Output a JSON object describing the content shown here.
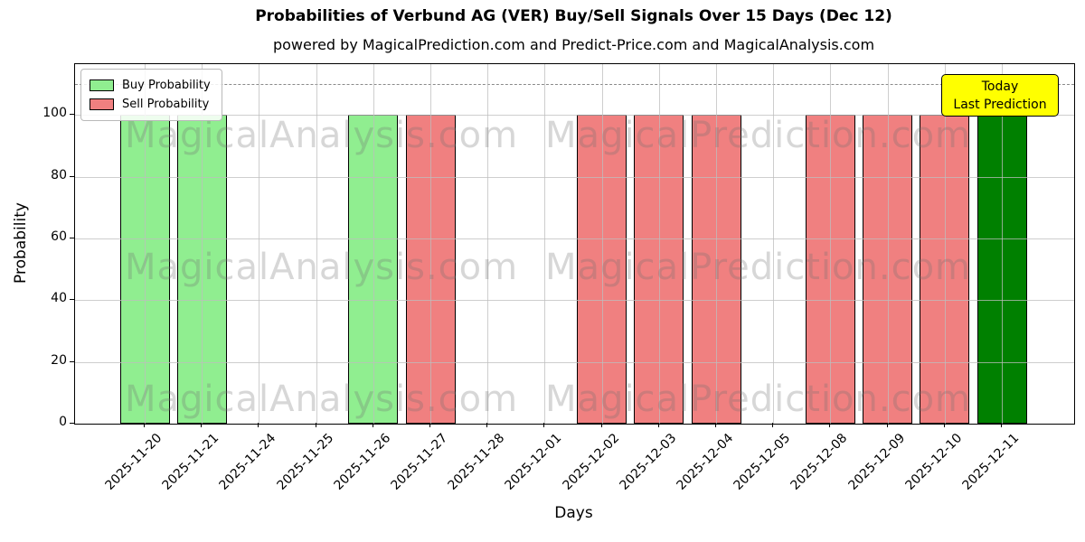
{
  "chart_data": {
    "type": "bar",
    "title": "Probabilities of Verbund AG (VER) Buy/Sell Signals Over 15 Days (Dec 12)",
    "subtitle": "powered by MagicalPrediction.com and Predict-Price.com and MagicalAnalysis.com",
    "xlabel": "Days",
    "ylabel": "Probability",
    "yticks": [
      0,
      20,
      40,
      60,
      80,
      100
    ],
    "ylim": [
      0,
      116
    ],
    "grid": true,
    "legend_position": "upper left",
    "threshold_line": {
      "y": 110,
      "style": "dashed"
    },
    "categories": [
      "2025-11-20",
      "2025-11-21",
      "2025-11-24",
      "2025-11-25",
      "2025-11-26",
      "2025-11-27",
      "2025-11-28",
      "2025-12-01",
      "2025-12-02",
      "2025-12-03",
      "2025-12-04",
      "2025-12-05",
      "2025-12-08",
      "2025-12-09",
      "2025-12-10",
      "2025-12-11"
    ],
    "series": [
      {
        "name": "Buy Probability",
        "color": "#90ee90",
        "values": [
          100,
          100,
          0,
          0,
          100,
          0,
          0,
          0,
          0,
          0,
          0,
          0,
          0,
          0,
          0,
          100
        ]
      },
      {
        "name": "Sell Probability",
        "color": "#f08080",
        "values": [
          0,
          0,
          0,
          0,
          0,
          100,
          0,
          0,
          100,
          100,
          100,
          0,
          100,
          100,
          100,
          0
        ]
      }
    ],
    "today_highlight": {
      "index": 15,
      "date": "2025-12-11",
      "series": "Buy Probability",
      "value": 100,
      "color": "#008000"
    }
  },
  "annotation_box": {
    "line1": "Today",
    "line2": "Last Prediction",
    "bg_color": "#ffff00"
  },
  "watermarks": {
    "left": "MagicalAnalysis.com",
    "right": "MagicalPrediction.com"
  },
  "colors": {
    "buy": "#90ee90",
    "sell": "#f08080",
    "today_buy": "#008000",
    "bar_edge": "#000000",
    "grid": "#bdbdbd",
    "threshold": "#8a8a8a",
    "annotation_bg": "#ffff00",
    "annotation_border": "#000000"
  }
}
